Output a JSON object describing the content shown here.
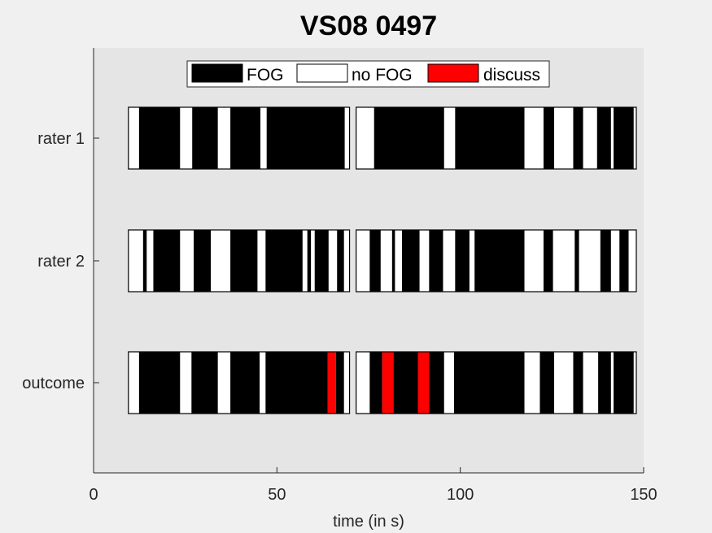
{
  "chart_data": {
    "type": "bar",
    "title": "VS08 0497",
    "xlabel": "time (in s)",
    "ylabel": "",
    "xlim": [
      0,
      150
    ],
    "x_ticks": [
      0,
      50,
      100,
      150
    ],
    "x_tick_labels": [
      "0",
      "50",
      "100",
      "150"
    ],
    "categories": [
      "rater 1",
      "rater 2",
      "outcome"
    ],
    "grid": false,
    "legend_position": "top-center",
    "legend": [
      {
        "label": "FOG",
        "color": "#000000"
      },
      {
        "label": "no FOG",
        "color": "#ffffff"
      },
      {
        "label": "discuss",
        "color": "#ff0000"
      }
    ],
    "colors": {
      "FOG": "#000000",
      "no FOG": "#ffffff",
      "discuss": "#ff0000",
      "axes_background": "#e5e5e5",
      "figure_background": "#f0f0f0"
    },
    "clip_windows": [
      [
        9.5,
        69.8
      ],
      [
        71.6,
        148.0
      ]
    ],
    "rows": [
      {
        "name": "rater 1",
        "segments": [
          {
            "start": 9.5,
            "end": 12.4,
            "state": "no FOG"
          },
          {
            "start": 12.4,
            "end": 23.6,
            "state": "FOG"
          },
          {
            "start": 23.6,
            "end": 26.9,
            "state": "no FOG"
          },
          {
            "start": 26.9,
            "end": 33.9,
            "state": "FOG"
          },
          {
            "start": 33.9,
            "end": 37.3,
            "state": "no FOG"
          },
          {
            "start": 37.3,
            "end": 45.5,
            "state": "FOG"
          },
          {
            "start": 45.5,
            "end": 47.2,
            "state": "no FOG"
          },
          {
            "start": 47.2,
            "end": 68.5,
            "state": "FOG"
          },
          {
            "start": 68.5,
            "end": 69.8,
            "state": "no FOG"
          },
          {
            "start": 71.6,
            "end": 76.5,
            "state": "no FOG"
          },
          {
            "start": 76.5,
            "end": 95.6,
            "state": "FOG"
          },
          {
            "start": 95.6,
            "end": 98.6,
            "state": "no FOG"
          },
          {
            "start": 98.6,
            "end": 117.5,
            "state": "FOG"
          },
          {
            "start": 117.5,
            "end": 122.7,
            "state": "no FOG"
          },
          {
            "start": 122.7,
            "end": 125.6,
            "state": "FOG"
          },
          {
            "start": 125.6,
            "end": 130.8,
            "state": "no FOG"
          },
          {
            "start": 130.8,
            "end": 133.5,
            "state": "FOG"
          },
          {
            "start": 133.5,
            "end": 137.3,
            "state": "no FOG"
          },
          {
            "start": 137.3,
            "end": 141.1,
            "state": "FOG"
          },
          {
            "start": 141.1,
            "end": 141.8,
            "state": "no FOG"
          },
          {
            "start": 141.8,
            "end": 147.3,
            "state": "FOG"
          },
          {
            "start": 147.3,
            "end": 148.0,
            "state": "no FOG"
          }
        ]
      },
      {
        "name": "rater 2",
        "segments": [
          {
            "start": 9.5,
            "end": 13.5,
            "state": "no FOG"
          },
          {
            "start": 13.5,
            "end": 14.5,
            "state": "FOG"
          },
          {
            "start": 14.5,
            "end": 16.3,
            "state": "no FOG"
          },
          {
            "start": 16.3,
            "end": 23.6,
            "state": "FOG"
          },
          {
            "start": 23.6,
            "end": 27.3,
            "state": "no FOG"
          },
          {
            "start": 27.3,
            "end": 32.0,
            "state": "FOG"
          },
          {
            "start": 32.0,
            "end": 37.3,
            "state": "no FOG"
          },
          {
            "start": 37.3,
            "end": 44.7,
            "state": "FOG"
          },
          {
            "start": 44.7,
            "end": 46.9,
            "state": "no FOG"
          },
          {
            "start": 46.9,
            "end": 57.0,
            "state": "FOG"
          },
          {
            "start": 57.0,
            "end": 58.3,
            "state": "no FOG"
          },
          {
            "start": 58.3,
            "end": 59.3,
            "state": "FOG"
          },
          {
            "start": 59.3,
            "end": 60.3,
            "state": "no FOG"
          },
          {
            "start": 60.3,
            "end": 64.1,
            "state": "FOG"
          },
          {
            "start": 64.1,
            "end": 66.4,
            "state": "no FOG"
          },
          {
            "start": 66.4,
            "end": 68.3,
            "state": "FOG"
          },
          {
            "start": 68.3,
            "end": 69.8,
            "state": "no FOG"
          },
          {
            "start": 71.6,
            "end": 75.3,
            "state": "no FOG"
          },
          {
            "start": 75.3,
            "end": 78.3,
            "state": "FOG"
          },
          {
            "start": 78.3,
            "end": 81.4,
            "state": "no FOG"
          },
          {
            "start": 81.4,
            "end": 82.2,
            "state": "FOG"
          },
          {
            "start": 82.2,
            "end": 84.1,
            "state": "no FOG"
          },
          {
            "start": 84.1,
            "end": 88.9,
            "state": "FOG"
          },
          {
            "start": 88.9,
            "end": 91.5,
            "state": "no FOG"
          },
          {
            "start": 91.5,
            "end": 95.3,
            "state": "FOG"
          },
          {
            "start": 95.3,
            "end": 98.6,
            "state": "no FOG"
          },
          {
            "start": 98.6,
            "end": 102.5,
            "state": "FOG"
          },
          {
            "start": 102.5,
            "end": 103.9,
            "state": "no FOG"
          },
          {
            "start": 103.9,
            "end": 117.5,
            "state": "FOG"
          },
          {
            "start": 117.5,
            "end": 122.7,
            "state": "no FOG"
          },
          {
            "start": 122.7,
            "end": 125.3,
            "state": "FOG"
          },
          {
            "start": 125.3,
            "end": 131.2,
            "state": "no FOG"
          },
          {
            "start": 131.2,
            "end": 132.4,
            "state": "FOG"
          },
          {
            "start": 132.4,
            "end": 138.2,
            "state": "no FOG"
          },
          {
            "start": 138.2,
            "end": 141.1,
            "state": "FOG"
          },
          {
            "start": 141.1,
            "end": 143.4,
            "state": "no FOG"
          },
          {
            "start": 143.4,
            "end": 145.9,
            "state": "FOG"
          },
          {
            "start": 145.9,
            "end": 148.0,
            "state": "no FOG"
          }
        ]
      },
      {
        "name": "outcome",
        "segments": [
          {
            "start": 9.5,
            "end": 12.4,
            "state": "no FOG"
          },
          {
            "start": 12.4,
            "end": 23.6,
            "state": "FOG"
          },
          {
            "start": 23.6,
            "end": 26.7,
            "state": "no FOG"
          },
          {
            "start": 26.7,
            "end": 33.9,
            "state": "FOG"
          },
          {
            "start": 33.9,
            "end": 37.3,
            "state": "no FOG"
          },
          {
            "start": 37.3,
            "end": 45.3,
            "state": "FOG"
          },
          {
            "start": 45.3,
            "end": 46.9,
            "state": "no FOG"
          },
          {
            "start": 46.9,
            "end": 63.8,
            "state": "FOG"
          },
          {
            "start": 63.8,
            "end": 66.1,
            "state": "discuss"
          },
          {
            "start": 66.1,
            "end": 68.3,
            "state": "FOG"
          },
          {
            "start": 68.3,
            "end": 69.8,
            "state": "no FOG"
          },
          {
            "start": 71.6,
            "end": 75.3,
            "state": "no FOG"
          },
          {
            "start": 75.3,
            "end": 78.7,
            "state": "FOG"
          },
          {
            "start": 78.7,
            "end": 81.8,
            "state": "discuss"
          },
          {
            "start": 81.8,
            "end": 88.5,
            "state": "FOG"
          },
          {
            "start": 88.5,
            "end": 91.5,
            "state": "discuss"
          },
          {
            "start": 91.5,
            "end": 95.6,
            "state": "FOG"
          },
          {
            "start": 95.6,
            "end": 98.3,
            "state": "no FOG"
          },
          {
            "start": 98.3,
            "end": 117.5,
            "state": "FOG"
          },
          {
            "start": 117.5,
            "end": 121.7,
            "state": "no FOG"
          },
          {
            "start": 121.7,
            "end": 125.6,
            "state": "FOG"
          },
          {
            "start": 125.6,
            "end": 130.8,
            "state": "no FOG"
          },
          {
            "start": 130.8,
            "end": 133.5,
            "state": "FOG"
          },
          {
            "start": 133.5,
            "end": 137.6,
            "state": "no FOG"
          },
          {
            "start": 137.6,
            "end": 141.1,
            "state": "FOG"
          },
          {
            "start": 141.1,
            "end": 141.8,
            "state": "no FOG"
          },
          {
            "start": 141.8,
            "end": 147.3,
            "state": "FOG"
          },
          {
            "start": 147.3,
            "end": 148.0,
            "state": "no FOG"
          }
        ]
      }
    ]
  }
}
